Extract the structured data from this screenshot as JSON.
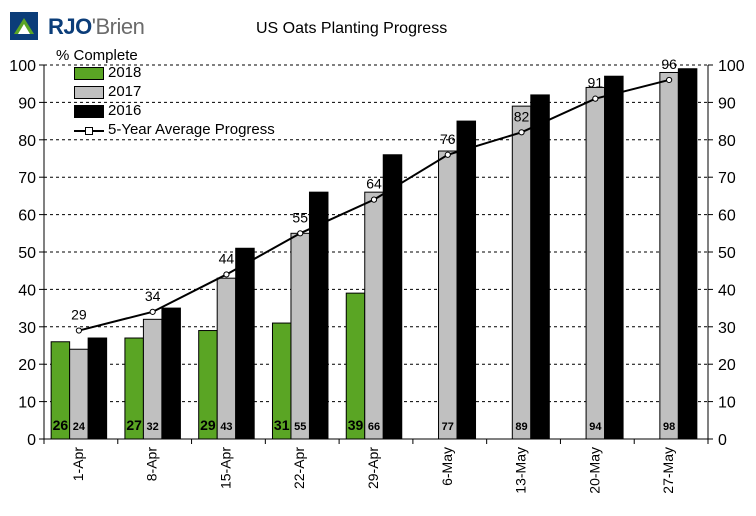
{
  "logo": {
    "brand_a": "RJO",
    "brand_b": "'Brien"
  },
  "chart_data": {
    "type": "bar",
    "title": "US Oats Planting Progress",
    "ylabel": "% Complete",
    "xlabel": "",
    "ylim": [
      0,
      100
    ],
    "yticks": [
      0,
      10,
      20,
      30,
      40,
      50,
      60,
      70,
      80,
      90,
      100
    ],
    "right_axis": true,
    "grid": "horizontal dashed",
    "legend_position": "top-left",
    "categories": [
      "1-Apr",
      "8-Apr",
      "15-Apr",
      "22-Apr",
      "29-Apr",
      "6-May",
      "13-May",
      "20-May",
      "27-May"
    ],
    "series": [
      {
        "name": "2018",
        "type": "bar",
        "color": "#5aa524",
        "values": [
          26,
          27,
          29,
          31,
          39,
          null,
          null,
          null,
          null
        ]
      },
      {
        "name": "2017",
        "type": "bar",
        "color": "#c0c0c0",
        "values": [
          24,
          32,
          43,
          55,
          66,
          77,
          89,
          94,
          98
        ]
      },
      {
        "name": "2016",
        "type": "bar",
        "color": "#000000",
        "values": [
          27,
          35,
          51,
          66,
          76,
          85,
          92,
          97,
          99
        ]
      },
      {
        "name": "5-Year Average Progress",
        "type": "line",
        "color": "#000000",
        "values": [
          29,
          34,
          44,
          55,
          64,
          76,
          82,
          91,
          96
        ]
      }
    ]
  }
}
